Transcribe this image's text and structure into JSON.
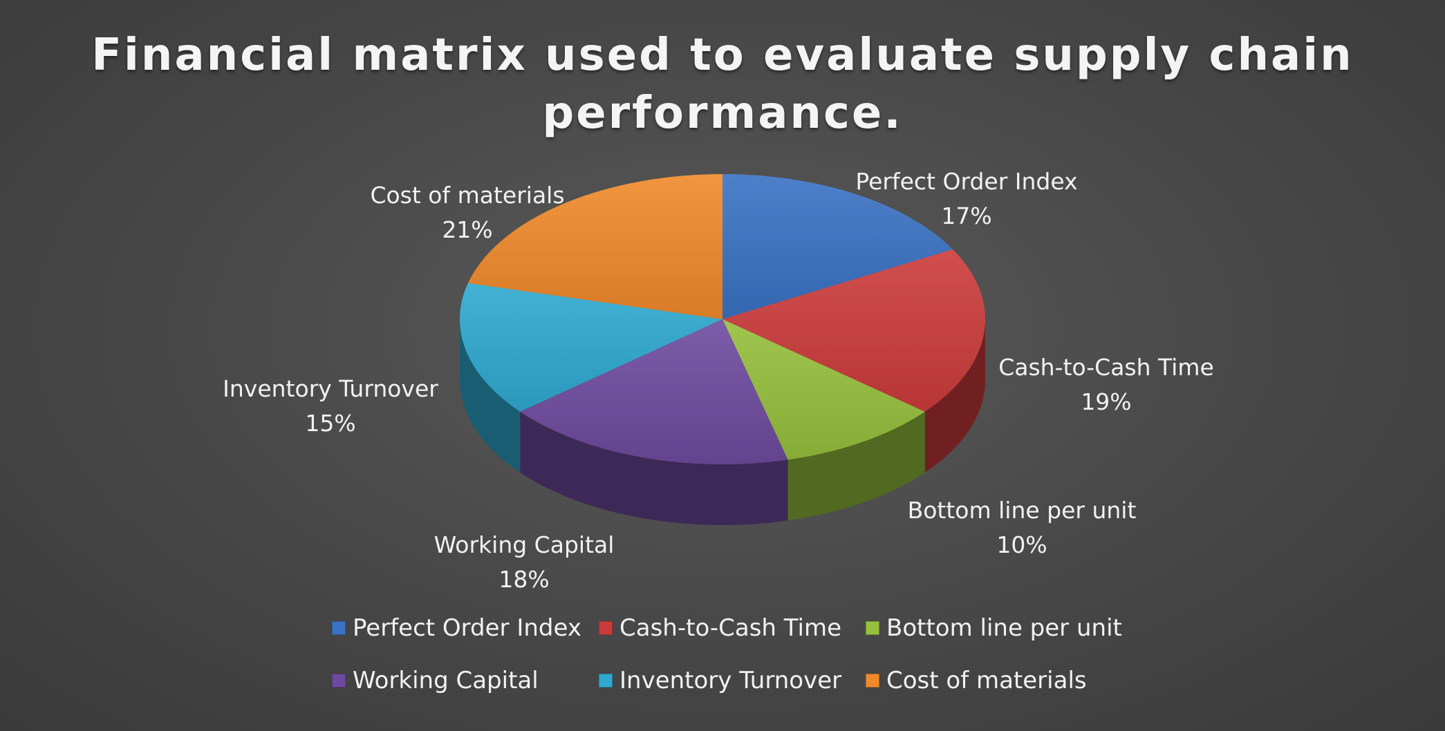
{
  "chart_data": {
    "type": "pie",
    "title_lines": [
      "Financial matrix used to evaluate supply chain",
      "performance."
    ],
    "categories": [
      "Perfect Order Index",
      "Cash-to-Cash Time",
      "Bottom line per unit",
      "Working Capital",
      "Inventory Turnover",
      "Cost of materials"
    ],
    "values": [
      17,
      19,
      10,
      18,
      15,
      21
    ],
    "data_labels": [
      "17%",
      "19%",
      "10%",
      "18%",
      "15%",
      "21%"
    ],
    "colors": [
      "#3a72c4",
      "#cb3b3b",
      "#95bf3c",
      "#6e4a9e",
      "#2ea9cf",
      "#f0892a"
    ],
    "legend_position": "bottom",
    "style": "3d"
  }
}
